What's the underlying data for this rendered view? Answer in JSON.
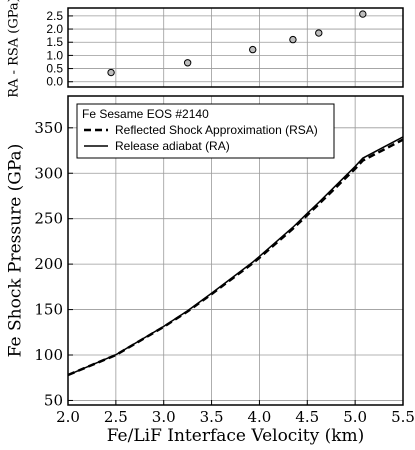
{
  "chart_data": [
    {
      "type": "scatter",
      "ylabel": "RA - RSA (GPa)",
      "xlabel": "",
      "xlim": [
        2.0,
        5.5
      ],
      "ylim": [
        -0.2,
        2.8
      ],
      "yticks": [
        "0.0",
        "0.5",
        "1.0",
        "1.5",
        "2.0",
        "2.5"
      ],
      "grid": true,
      "series": [
        {
          "x": [
            2.45,
            3.25,
            3.93,
            4.35,
            4.62,
            5.08
          ],
          "y": [
            0.35,
            0.72,
            1.22,
            1.6,
            1.85,
            2.57
          ]
        }
      ]
    },
    {
      "type": "line",
      "xlabel": "Fe/LiF Interface Velocity (km)",
      "ylabel": "Fe Shock Pressure (GPa)",
      "xlim": [
        2.0,
        5.5
      ],
      "ylim": [
        45,
        385
      ],
      "xticks": [
        "2.0",
        "2.5",
        "3.0",
        "3.5",
        "4.0",
        "4.5",
        "5.0",
        "5.5"
      ],
      "yticks": [
        "50",
        "100",
        "150",
        "200",
        "250",
        "300",
        "350"
      ],
      "grid": true,
      "legend_title": "Fe Sesame EOS #2140",
      "legend_position": "top-left",
      "series": [
        {
          "name": "Reflected Shock Approximation (RSA)",
          "style": "dashed",
          "x": [
            2.0,
            2.5,
            3.0,
            3.25,
            3.5,
            3.93,
            4.0,
            4.35,
            4.5,
            4.62,
            5.0,
            5.08,
            5.5
          ],
          "y": [
            78,
            100,
            131,
            148,
            167,
            201,
            207,
            239,
            254,
            266,
            305,
            314,
            337
          ]
        },
        {
          "name": "Release adiabat (RA)",
          "style": "solid",
          "x": [
            2.0,
            2.5,
            3.0,
            3.25,
            3.5,
            3.93,
            4.0,
            4.35,
            4.5,
            4.62,
            5.0,
            5.08,
            5.5
          ],
          "y": [
            78,
            100.3,
            131.5,
            148.7,
            168,
            202.2,
            208.5,
            240.6,
            256,
            267.9,
            307.5,
            316.6,
            340
          ]
        }
      ]
    }
  ]
}
